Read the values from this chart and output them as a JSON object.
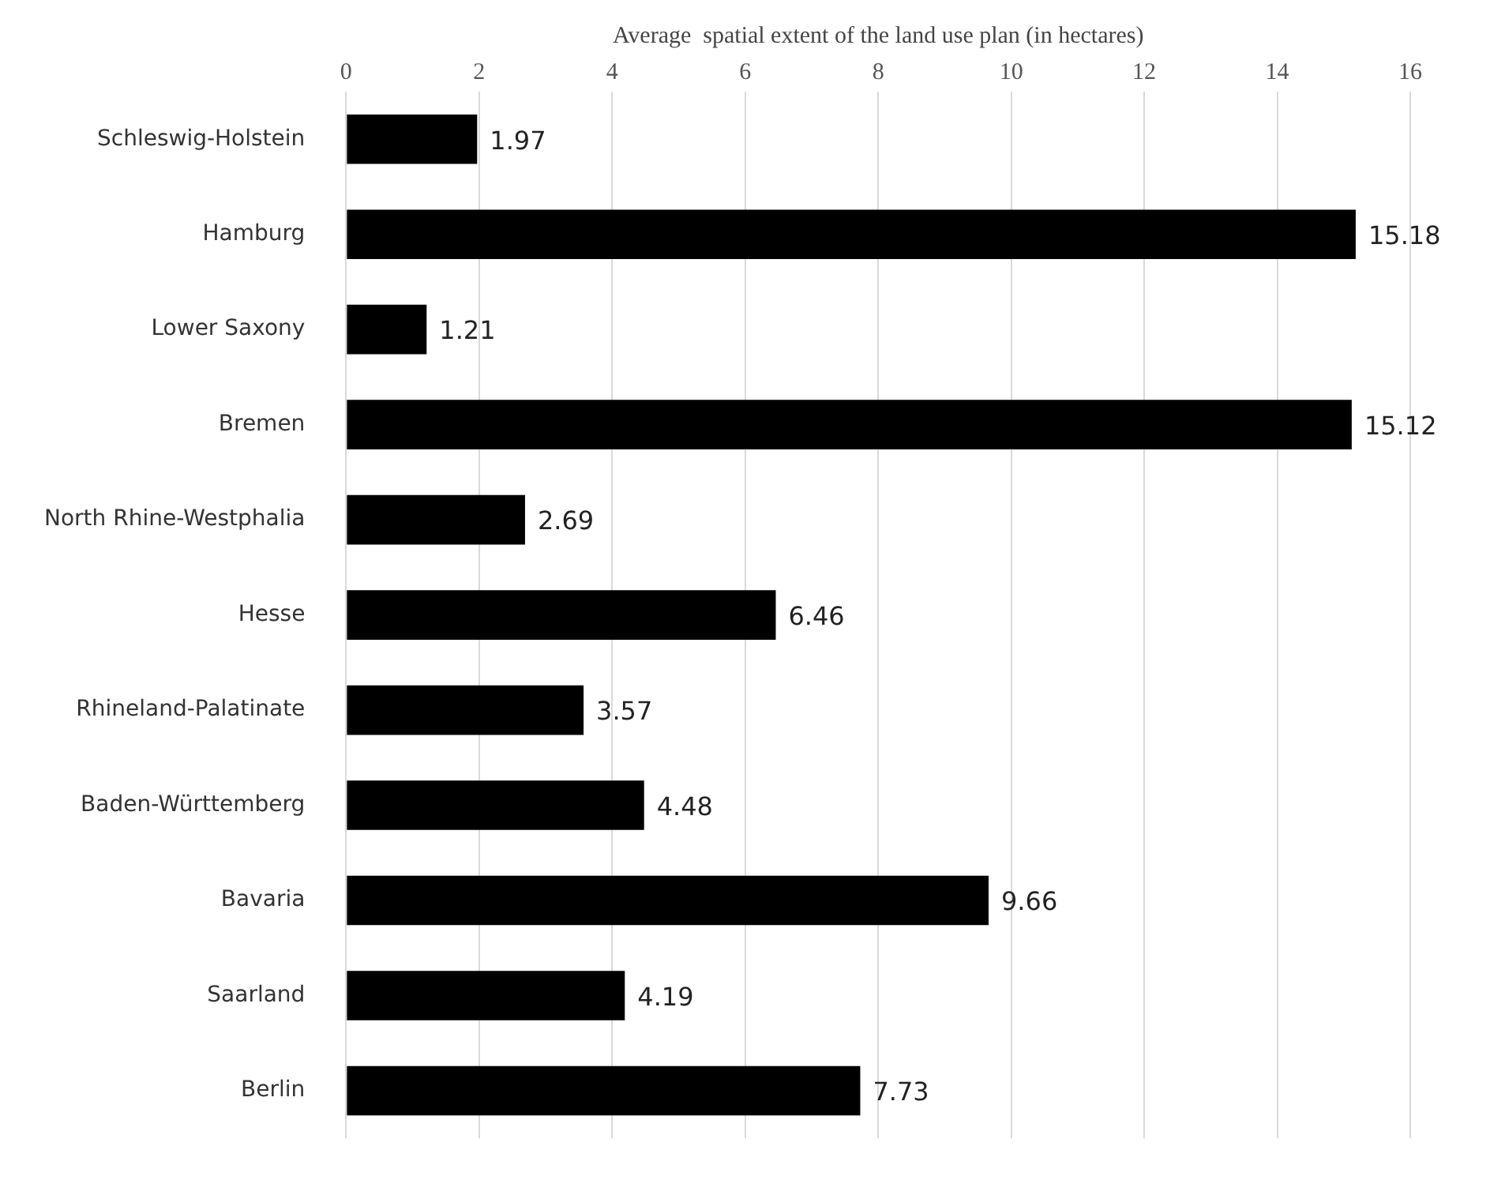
{
  "chart_data": {
    "type": "bar",
    "orientation": "horizontal",
    "xlabel": "Average  spatial extent of the land use plan (in hectares)",
    "categories": [
      "Schleswig-Holstein",
      "Hamburg",
      "Lower Saxony",
      "Bremen",
      "North Rhine-Westphalia",
      "Hesse",
      "Rhineland-Palatinate",
      "Baden-Württemberg",
      "Bavaria",
      "Saarland",
      "Berlin"
    ],
    "values": [
      1.97,
      15.18,
      1.21,
      15.12,
      2.69,
      6.46,
      3.57,
      4.48,
      9.66,
      4.19,
      7.73
    ],
    "color": "#000000",
    "xlim": [
      0,
      16
    ],
    "xticks": [
      0,
      2,
      4,
      6,
      8,
      10,
      12,
      14,
      16
    ],
    "grid": "x",
    "data_labels": true,
    "legend": false
  }
}
